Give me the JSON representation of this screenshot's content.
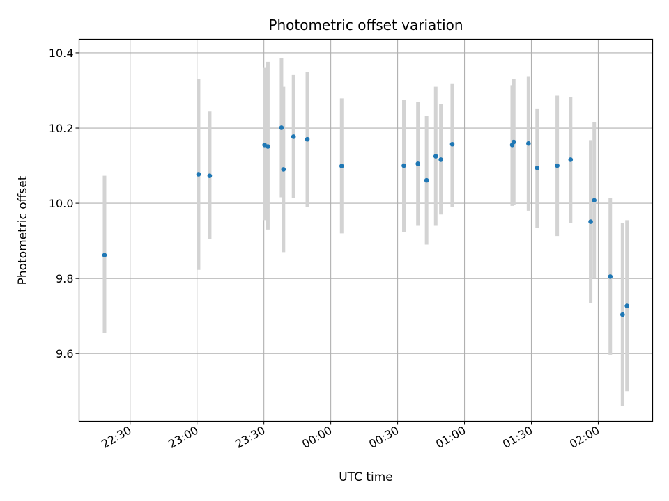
{
  "chart_data": {
    "type": "scatter",
    "title": "Photometric offset variation",
    "xlabel": "UTC time",
    "ylabel": "Photometric offset",
    "x_ticks": [
      "22:30",
      "23:00",
      "23:30",
      "00:00",
      "00:30",
      "01:00",
      "01:30",
      "02:00"
    ],
    "x_tick_minutes": [
      -90,
      -60,
      -30,
      0,
      30,
      60,
      90,
      120
    ],
    "xlim_minutes": [
      -112.9,
      144.4
    ],
    "y_ticks": [
      "9.6",
      "9.8",
      "10.0",
      "10.2",
      "10.4"
    ],
    "y_tick_values": [
      9.6,
      9.8,
      10.0,
      10.2,
      10.4
    ],
    "ylim": [
      9.42,
      10.436
    ],
    "grid": true,
    "x_unit_note": "minutes relative to 00:00 UTC",
    "colors": {
      "marker": "#1f77b4",
      "errorbar": "#d3d3d3",
      "grid": "#b0b0b0"
    },
    "series": [
      {
        "points": [
          {
            "x": -101.5,
            "y": 9.862,
            "err_low": 9.655,
            "err_high": 10.073
          },
          {
            "x": -59.3,
            "y": 10.077,
            "err_low": 9.823,
            "err_high": 10.33
          },
          {
            "x": -54.3,
            "y": 10.073,
            "err_low": 9.905,
            "err_high": 10.244
          },
          {
            "x": -29.7,
            "y": 10.155,
            "err_low": 9.955,
            "err_high": 10.36
          },
          {
            "x": -28.2,
            "y": 10.151,
            "err_low": 9.93,
            "err_high": 10.376
          },
          {
            "x": -22.1,
            "y": 10.201,
            "err_low": 10.016,
            "err_high": 10.386
          },
          {
            "x": -21.2,
            "y": 10.09,
            "err_low": 9.87,
            "err_high": 10.31
          },
          {
            "x": -16.7,
            "y": 10.177,
            "err_low": 10.014,
            "err_high": 10.341
          },
          {
            "x": -10.5,
            "y": 10.17,
            "err_low": 9.99,
            "err_high": 10.35
          },
          {
            "x": 4.9,
            "y": 10.099,
            "err_low": 9.92,
            "err_high": 10.279
          },
          {
            "x": 32.8,
            "y": 10.1,
            "err_low": 9.923,
            "err_high": 10.276
          },
          {
            "x": 39.1,
            "y": 10.105,
            "err_low": 9.94,
            "err_high": 10.27
          },
          {
            "x": 43.0,
            "y": 10.061,
            "err_low": 9.89,
            "err_high": 10.232
          },
          {
            "x": 47.1,
            "y": 10.125,
            "err_low": 9.94,
            "err_high": 10.31
          },
          {
            "x": 49.4,
            "y": 10.116,
            "err_low": 9.97,
            "err_high": 10.263
          },
          {
            "x": 54.5,
            "y": 10.157,
            "err_low": 9.99,
            "err_high": 10.319
          },
          {
            "x": 81.4,
            "y": 10.155,
            "err_low": 9.993,
            "err_high": 10.314
          },
          {
            "x": 82.1,
            "y": 10.163,
            "err_low": 9.995,
            "err_high": 10.33
          },
          {
            "x": 88.7,
            "y": 10.159,
            "err_low": 9.98,
            "err_high": 10.338
          },
          {
            "x": 92.6,
            "y": 10.094,
            "err_low": 9.935,
            "err_high": 10.252
          },
          {
            "x": 101.6,
            "y": 10.1,
            "err_low": 9.913,
            "err_high": 10.286
          },
          {
            "x": 107.6,
            "y": 10.116,
            "err_low": 9.948,
            "err_high": 10.283
          },
          {
            "x": 116.6,
            "y": 9.951,
            "err_low": 9.735,
            "err_high": 10.168
          },
          {
            "x": 118.2,
            "y": 10.008,
            "err_low": 9.8,
            "err_high": 10.215
          },
          {
            "x": 125.4,
            "y": 9.805,
            "err_low": 9.597,
            "err_high": 10.014
          },
          {
            "x": 130.9,
            "y": 9.704,
            "err_low": 9.46,
            "err_high": 9.948
          },
          {
            "x": 132.9,
            "y": 9.727,
            "err_low": 9.5,
            "err_high": 9.955
          }
        ]
      }
    ]
  }
}
